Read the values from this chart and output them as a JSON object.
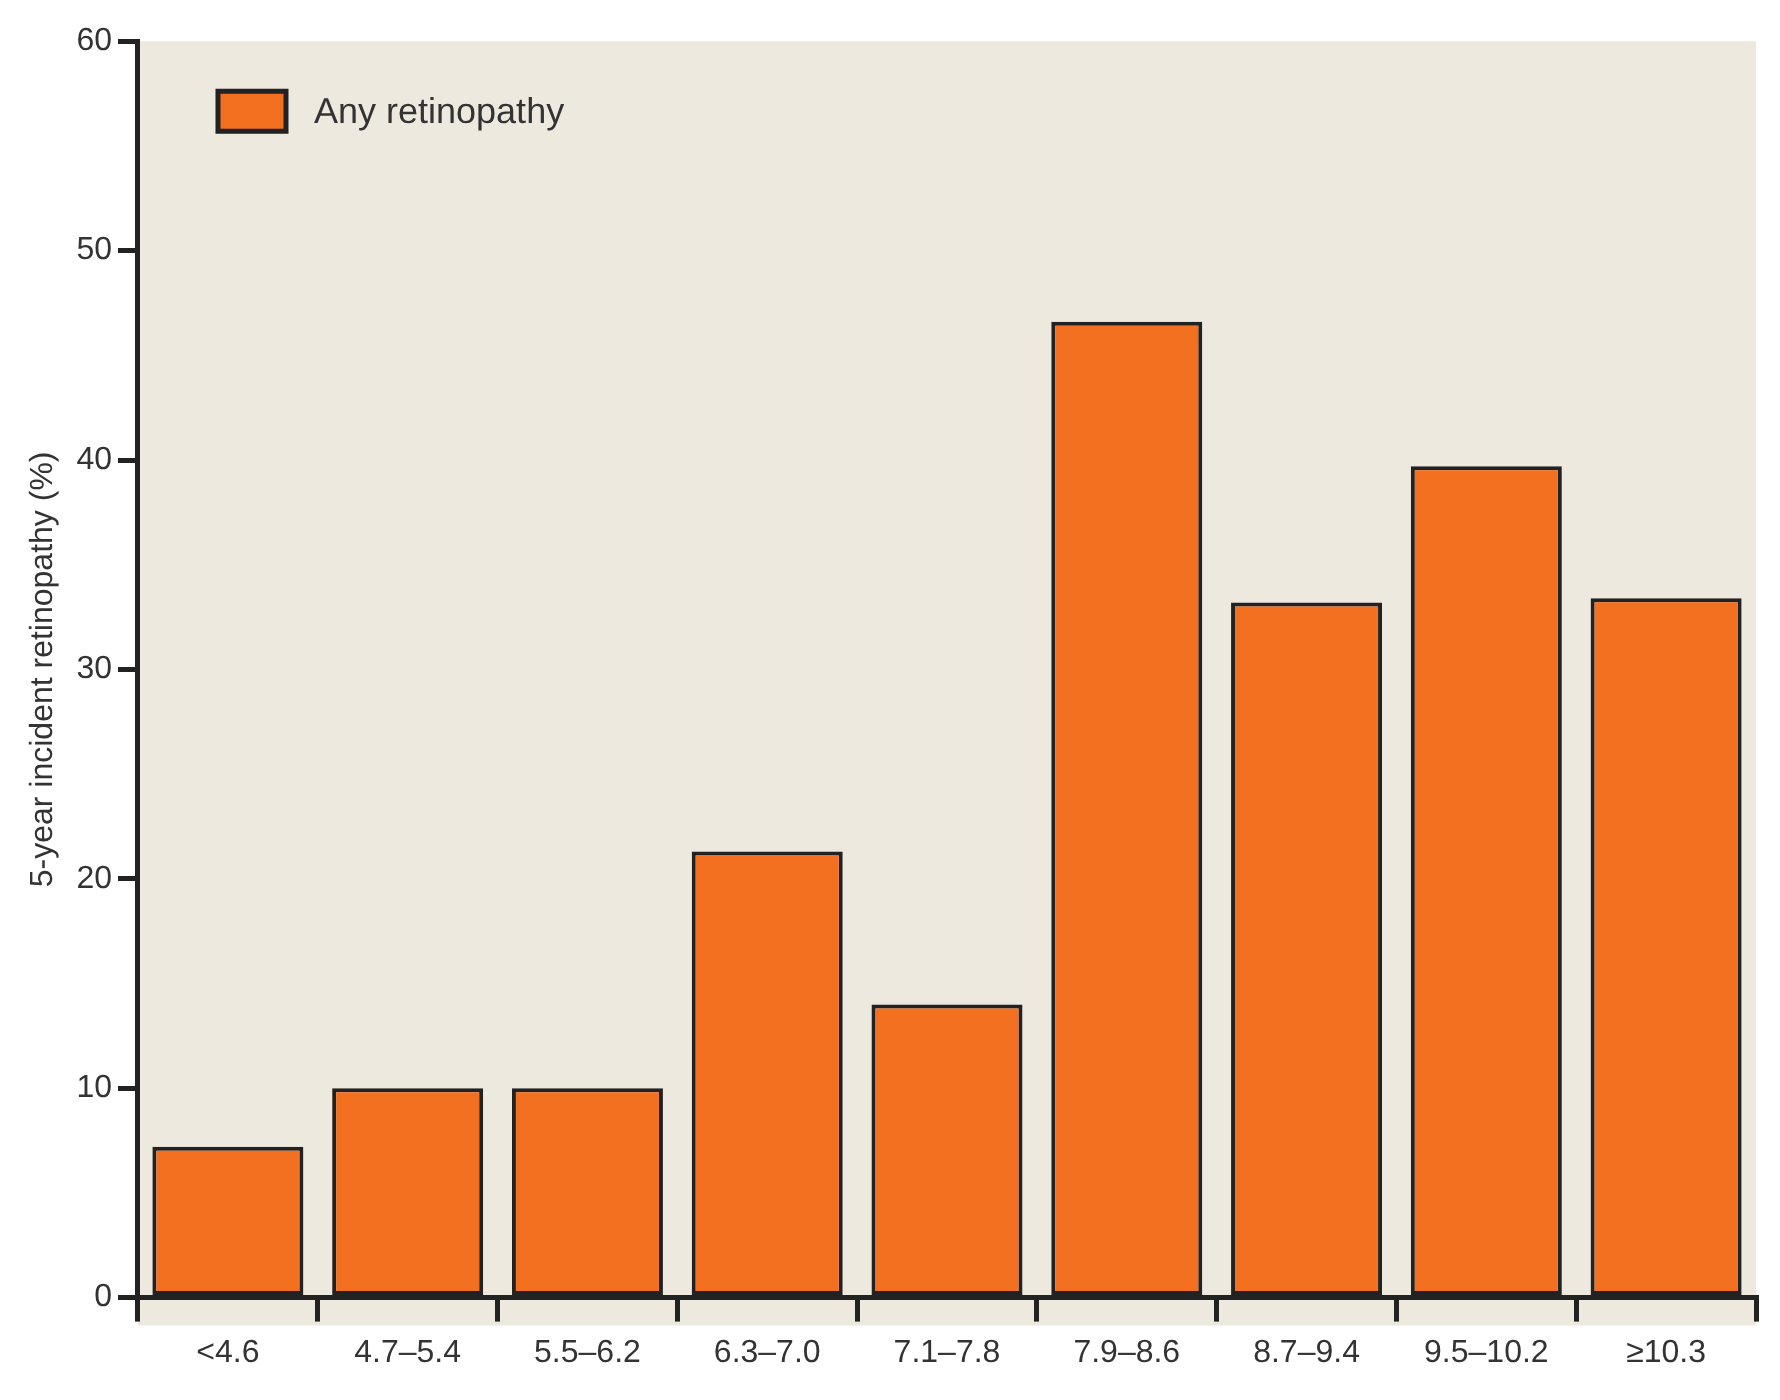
{
  "chart_data": {
    "type": "bar",
    "ylabel": "5-year incident retinopathy (%)",
    "categories": [
      "<4.6",
      "4.7–5.4",
      "5.5–6.2",
      "6.3–7.0",
      "7.1–7.8",
      "7.9–8.6",
      "8.7–9.4",
      "9.5–10.2",
      "≥10.3"
    ],
    "series": [
      {
        "name": "Any retinopathy",
        "color": "#f37021",
        "values": [
          7.2,
          10,
          10,
          21.3,
          14,
          46.6,
          33.2,
          39.7,
          33.4
        ]
      }
    ],
    "ylim": [
      0,
      60
    ],
    "yticks": [
      0,
      10,
      20,
      30,
      40,
      50,
      60
    ],
    "grid": false,
    "legend": "top left"
  }
}
